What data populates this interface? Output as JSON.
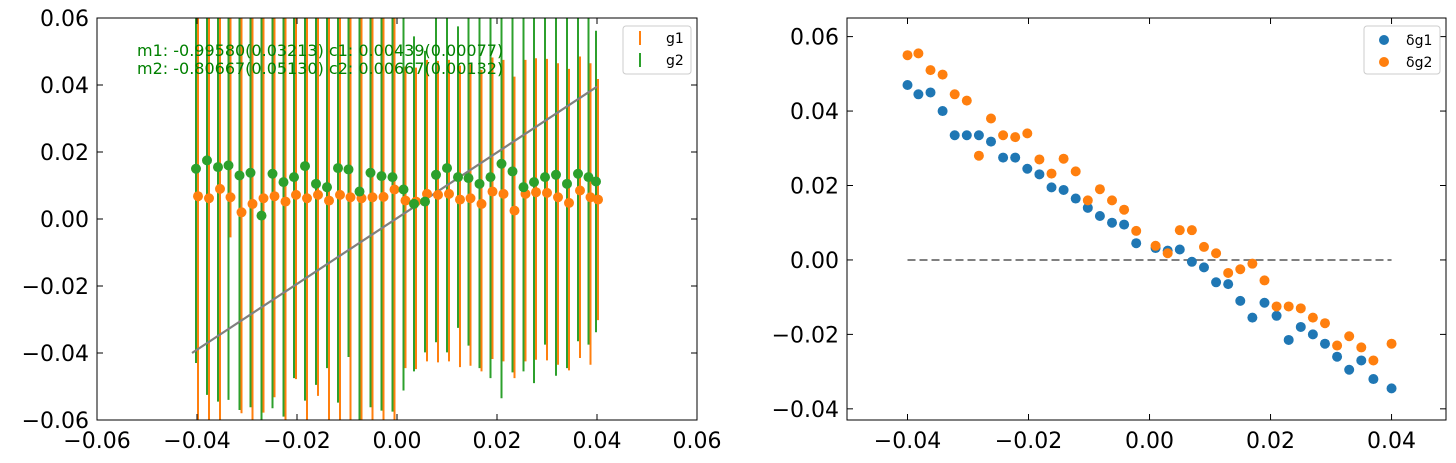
{
  "colors": {
    "blue": "#1f77b4",
    "orange": "#ff7f0e",
    "green": "#2ca02c",
    "fit_line": "#808080",
    "annotation": "#008000"
  },
  "chart_data": [
    {
      "type": "scatter",
      "title": "",
      "xlabel": "",
      "ylabel": "",
      "xlim": [
        -0.06,
        0.06
      ],
      "ylim": [
        -0.06,
        0.06
      ],
      "grid": false,
      "legend_placement": "top-right",
      "xticks": [
        "−0.06",
        "−0.04",
        "−0.02",
        "0.00",
        "0.02",
        "0.04",
        "0.06"
      ],
      "yticks": [
        "−0.06",
        "−0.04",
        "−0.02",
        "0.00",
        "0.02",
        "0.04",
        "0.06"
      ],
      "annotations": [
        "m1: -0.99580(0.03213) c1: 0.00439(0.00077)",
        "m2: -0.80667(0.05130) c2: 0.00667(0.00132)"
      ],
      "x": [
        -0.04,
        -0.0378,
        -0.0356,
        -0.0335,
        -0.0313,
        -0.0291,
        -0.0269,
        -0.0247,
        -0.0225,
        -0.0204,
        -0.0182,
        -0.016,
        -0.0138,
        -0.0116,
        -0.0095,
        -0.0073,
        -0.0051,
        -0.0029,
        -0.0007,
        0.0015,
        0.0036,
        0.0058,
        0.008,
        0.0102,
        0.0124,
        0.0145,
        0.0167,
        0.0189,
        0.0211,
        0.0233,
        0.0255,
        0.0276,
        0.0298,
        0.032,
        0.0342,
        0.0364,
        0.0385,
        0.04
      ],
      "series": [
        {
          "name": "g1",
          "values": [
            0.0068,
            0.0062,
            0.009,
            0.0065,
            0.002,
            0.0045,
            0.0062,
            0.0068,
            0.0052,
            0.0072,
            0.0062,
            0.0072,
            0.0055,
            0.0072,
            0.0065,
            0.0062,
            0.0065,
            0.0066,
            0.0088,
            0.0055,
            0.0052,
            0.0075,
            0.0072,
            0.0075,
            0.0058,
            0.0062,
            0.0045,
            0.0082,
            0.0075,
            0.0025,
            0.0075,
            0.008,
            0.0078,
            0.0065,
            0.0048,
            0.0085,
            0.0065,
            0.0058
          ],
          "yerr_low": [
            0.07,
            0.07,
            0.07,
            0.012,
            0.06,
            0.07,
            0.064,
            0.06,
            0.07,
            0.055,
            0.07,
            0.06,
            0.07,
            0.07,
            0.07,
            0.07,
            0.07,
            0.07,
            0.07,
            0.05,
            0.05,
            0.05,
            0.05,
            0.05,
            0.05,
            0.05,
            0.05,
            0.05,
            0.05,
            0.05,
            0.05,
            0.05,
            0.05,
            0.05,
            0.05,
            0.05,
            0.05,
            0.036
          ],
          "yerr_high": [
            0.07,
            0.07,
            0.07,
            0.07,
            0.07,
            0.07,
            0.07,
            0.07,
            0.07,
            0.07,
            0.07,
            0.07,
            0.07,
            0.07,
            0.07,
            0.07,
            0.07,
            0.07,
            0.07,
            0.04,
            0.04,
            0.04,
            0.04,
            0.04,
            0.04,
            0.04,
            0.04,
            0.04,
            0.04,
            0.04,
            0.04,
            0.04,
            0.04,
            0.04,
            0.04,
            0.04,
            0.04,
            0.036
          ]
        },
        {
          "name": "g2",
          "values": [
            0.015,
            0.0175,
            0.0155,
            0.016,
            0.013,
            0.0138,
            0.001,
            0.0135,
            0.011,
            0.0125,
            0.0158,
            0.0105,
            0.0095,
            0.0152,
            0.0148,
            0.0082,
            0.0138,
            0.0128,
            0.0125,
            0.0088,
            0.0045,
            0.0052,
            0.0132,
            0.0152,
            0.0125,
            0.0122,
            0.0105,
            0.0125,
            0.0165,
            0.0142,
            0.0095,
            0.011,
            0.0125,
            0.0132,
            0.0105,
            0.0135,
            0.0125,
            0.0112
          ],
          "yerr": [
            0.058,
            0.07,
            0.07,
            0.07,
            0.07,
            0.07,
            0.07,
            0.07,
            0.07,
            0.06,
            0.07,
            0.06,
            0.054,
            0.07,
            0.056,
            0.07,
            0.07,
            0.07,
            0.07,
            0.06,
            0.05,
            0.045,
            0.05,
            0.055,
            0.045,
            0.05,
            0.055,
            0.06,
            0.07,
            0.06,
            0.055,
            0.06,
            0.05,
            0.06,
            0.055,
            0.05,
            0.05,
            0.045
          ]
        },
        {
          "name": "",
          "type": "line",
          "x": [
            -0.041,
            0.04
          ],
          "values": [
            -0.04,
            0.0395
          ]
        }
      ]
    },
    {
      "type": "scatter",
      "title": "",
      "xlabel": "",
      "ylabel": "",
      "xlim": [
        -0.05,
        0.049
      ],
      "ylim": [
        -0.043,
        0.065
      ],
      "grid": false,
      "legend_placement": "top-right",
      "xticks": [
        "−0.04",
        "−0.02",
        "0.00",
        "0.02",
        "0.04"
      ],
      "yticks": [
        "−0.04",
        "−0.02",
        "0.00",
        "0.02",
        "0.04",
        "0.06"
      ],
      "x": [
        -0.04,
        -0.0378,
        -0.0356,
        -0.0335,
        -0.0313,
        -0.0291,
        -0.0269,
        -0.0247,
        -0.0225,
        -0.0204,
        -0.0182,
        -0.016,
        -0.0138,
        -0.0116,
        -0.0095,
        -0.0073,
        -0.0051,
        -0.0029,
        -0.0007,
        0.0015,
        0.0036,
        0.0058,
        0.008,
        0.0102,
        0.0124,
        0.0145,
        0.0167,
        0.0189,
        0.0211,
        0.0233,
        0.0255,
        0.0276,
        0.0298,
        0.032,
        0.0342,
        0.0364,
        0.0385,
        0.04
      ],
      "series": [
        {
          "name": "δg1",
          "x": [
            -0.04,
            -0.0382,
            -0.0362,
            -0.0342,
            -0.0322,
            -0.0302,
            -0.0282,
            -0.0262,
            -0.0242,
            -0.0222,
            -0.0202,
            -0.0182,
            -0.0162,
            -0.0142,
            -0.0122,
            -0.0102,
            -0.0082,
            -0.0062,
            -0.0042,
            -0.0022,
            0.001,
            0.003,
            0.005,
            0.007,
            0.009,
            0.011,
            0.013,
            0.015,
            0.017,
            0.019,
            0.021,
            0.023,
            0.025,
            0.027,
            0.029,
            0.031,
            0.033,
            0.035,
            0.037,
            0.04
          ],
          "values": [
            0.047,
            0.0445,
            0.045,
            0.04,
            0.0335,
            0.0335,
            0.0335,
            0.0318,
            0.0275,
            0.0275,
            0.0245,
            0.023,
            0.0195,
            0.0188,
            0.0165,
            0.014,
            0.0118,
            0.01,
            0.0095,
            0.0045,
            0.0032,
            0.0025,
            0.0028,
            -0.0005,
            -0.002,
            -0.006,
            -0.0065,
            -0.011,
            -0.0155,
            -0.0115,
            -0.015,
            -0.0215,
            -0.018,
            -0.02,
            -0.0225,
            -0.026,
            -0.0295,
            -0.027,
            -0.032,
            -0.0345
          ]
        },
        {
          "name": "δg2",
          "x": [
            -0.04,
            -0.0382,
            -0.0362,
            -0.0342,
            -0.0322,
            -0.0302,
            -0.0282,
            -0.0262,
            -0.0242,
            -0.0222,
            -0.0202,
            -0.0182,
            -0.0162,
            -0.0142,
            -0.0122,
            -0.0102,
            -0.0082,
            -0.0062,
            -0.0042,
            -0.0022,
            0.001,
            0.003,
            0.005,
            0.007,
            0.009,
            0.011,
            0.013,
            0.015,
            0.017,
            0.019,
            0.021,
            0.023,
            0.025,
            0.027,
            0.029,
            0.031,
            0.033,
            0.035,
            0.037,
            0.04
          ],
          "values": [
            0.055,
            0.0555,
            0.051,
            0.0498,
            0.0445,
            0.0428,
            0.028,
            0.038,
            0.0335,
            0.033,
            0.034,
            0.027,
            0.0232,
            0.0272,
            0.0238,
            0.016,
            0.019,
            0.016,
            0.0135,
            0.0078,
            0.0038,
            0.0018,
            0.008,
            0.008,
            0.0035,
            0.0018,
            -0.0035,
            -0.0025,
            -0.001,
            -0.0055,
            -0.0125,
            -0.0125,
            -0.013,
            -0.0155,
            -0.017,
            -0.023,
            -0.0205,
            -0.0235,
            -0.027,
            -0.0225
          ]
        },
        {
          "name": "",
          "type": "line",
          "style": "dashed",
          "x": [
            -0.04,
            0.04
          ],
          "values": [
            0.0,
            0.0
          ]
        }
      ]
    }
  ]
}
